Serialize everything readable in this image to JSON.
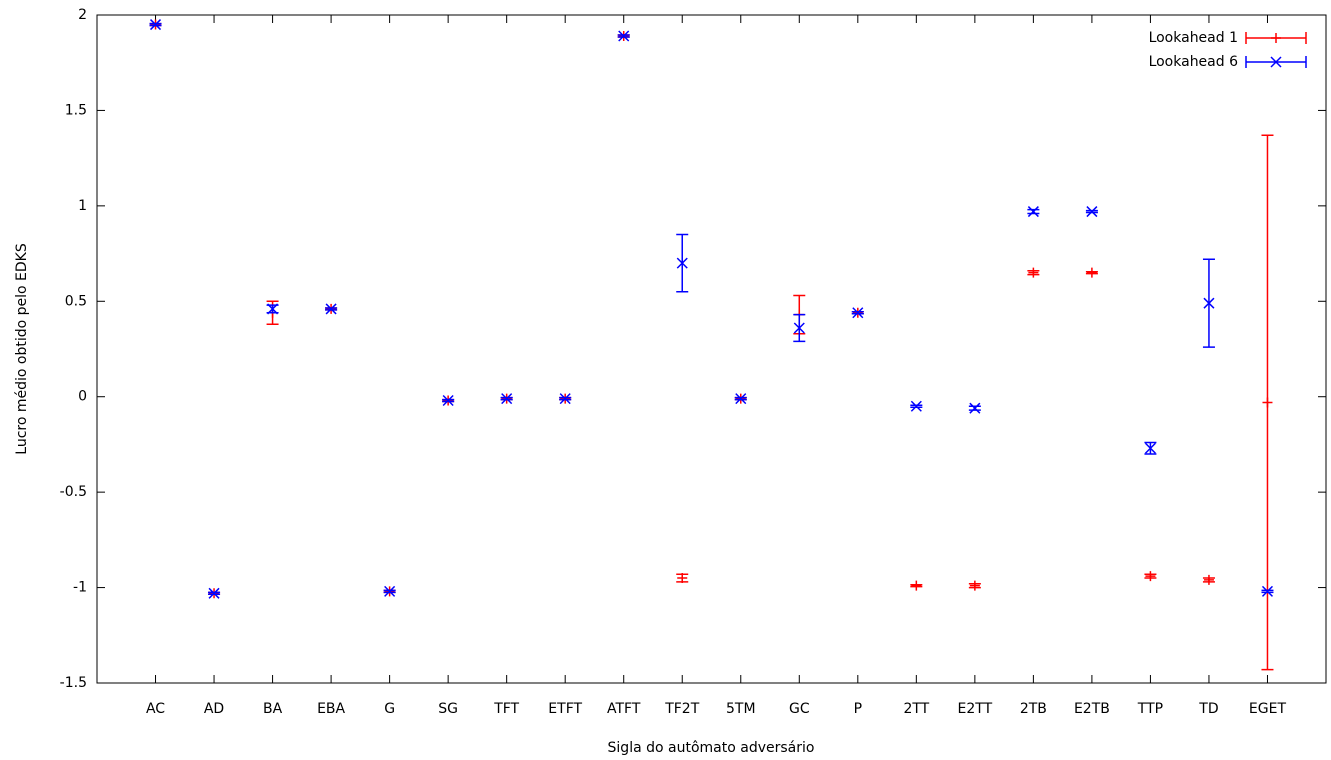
{
  "chart_data": {
    "type": "errorbar",
    "xlabel": "Sigla do autômato adversário",
    "ylabel": "Lucro médio obtido pelo EDKS",
    "categories": [
      "AC",
      "AD",
      "BA",
      "EBA",
      "G",
      "SG",
      "TFT",
      "ETFT",
      "ATFT",
      "TF2T",
      "5TM",
      "GC",
      "P",
      "2TT",
      "E2TT",
      "2TB",
      "E2TB",
      "TTP",
      "TD",
      "EGET"
    ],
    "ylim": [
      -1.5,
      2
    ],
    "yticks": [
      -1.5,
      -1,
      -0.5,
      0,
      0.5,
      1,
      1.5,
      2
    ],
    "legend": "top-right",
    "series": [
      {
        "name": "Lookahead 1",
        "color": "#ff0000",
        "marker": "plus",
        "values": [
          1.95,
          -1.03,
          0.44,
          0.46,
          -1.02,
          -0.02,
          -0.01,
          -0.01,
          1.89,
          -0.95,
          -0.01,
          0.43,
          0.44,
          -0.99,
          -0.99,
          0.65,
          0.65,
          -0.94,
          -0.96,
          -0.03
        ],
        "errors": [
          0.005,
          0.005,
          0.06,
          0.005,
          0.005,
          0.005,
          0.005,
          0.005,
          0.005,
          0.02,
          0.005,
          0.1,
          0.005,
          0.005,
          0.01,
          0.01,
          0.005,
          0.01,
          0.01,
          1.4
        ]
      },
      {
        "name": "Lookahead 6",
        "color": "#0000ff",
        "marker": "cross",
        "values": [
          1.95,
          -1.03,
          0.46,
          0.46,
          -1.02,
          -0.02,
          -0.01,
          -0.01,
          1.89,
          0.7,
          -0.01,
          0.36,
          0.44,
          -0.05,
          -0.06,
          0.97,
          0.97,
          -0.27,
          0.49,
          -1.02
        ],
        "errors": [
          0.005,
          0.005,
          0.02,
          0.005,
          0.005,
          0.005,
          0.005,
          0.005,
          0.005,
          0.15,
          0.005,
          0.07,
          0.005,
          0.005,
          0.01,
          0.01,
          0.005,
          0.03,
          0.23,
          0.005
        ]
      }
    ]
  }
}
